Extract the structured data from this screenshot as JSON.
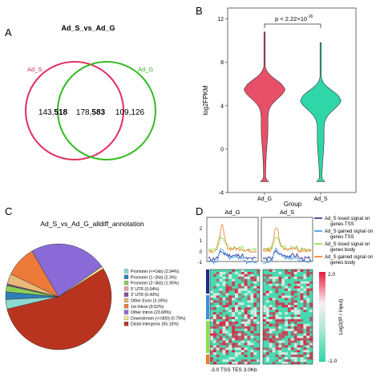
{
  "panels": {
    "A": {
      "letter": "A",
      "title": "Ad_S_vs_Ad_G",
      "set_left_label": "Ad_S",
      "set_right_label": "Ad_G",
      "left_only_prefix": "143,",
      "left_only_suffix": "518",
      "overlap_prefix": "178,",
      "overlap_suffix": "583",
      "right_only": "109,126",
      "left_color": "#e03060",
      "right_color": "#33bb22"
    },
    "B": {
      "letter": "B",
      "pvalue_text": "p < 2.22×10",
      "pvalue_exp": "-16",
      "ylabel": "log2FPKM",
      "xlabel": "Group",
      "colors": {
        "Ad_G": "#e8506a",
        "Ad_S": "#2fd6a8"
      }
    },
    "C": {
      "letter": "C",
      "title": "Ad_S_vs_Ad_G_alldiff_annotation"
    },
    "D": {
      "letter": "D",
      "profile_titles": [
        "Ad_G",
        "Ad_S"
      ],
      "x_axis_text": "-3.0  TSS    TES  3.0Kb",
      "colorbar_label": "Log2(IP / Input)",
      "colorbar_ticks": [
        "2.0",
        "-1.0"
      ],
      "legend": [
        {
          "label": "Ad_S losed signal on genes TSS",
          "color": "#1a2d8f"
        },
        {
          "label": "Ad_S gained signal on genes TSS",
          "color": "#3a8fe0"
        },
        {
          "label": "Ad_S losed signal on genes body",
          "color": "#88e04a"
        },
        {
          "label": "Ad_S gained signal on genes body",
          "color": "#f07a28"
        }
      ]
    }
  },
  "chart_data": [
    {
      "type": "violin",
      "title": "",
      "xlabel": "Group",
      "ylabel": "log2FPKM",
      "categories": [
        "Ad_G",
        "Ad_S"
      ],
      "ylim": [
        -4,
        13
      ],
      "yticks": [
        -4,
        0,
        4,
        8,
        12
      ],
      "series": [
        {
          "name": "Ad_G",
          "center": 5.6,
          "min": -3.0,
          "max": 10.8
        },
        {
          "name": "Ad_S",
          "center": 4.6,
          "min": -3.0,
          "max": 9.8
        }
      ]
    },
    {
      "type": "pie",
      "title": "Ad_S_vs_Ad_G_alldiff_annotation",
      "slices": [
        {
          "label": "Promoter (<=1kb) (2.94%)",
          "value": 2.94,
          "color": "#8ed8d0"
        },
        {
          "label": "Promoter (1~2kb) (2.3%)",
          "value": 2.3,
          "color": "#2e7fb8"
        },
        {
          "label": "Promoter (2~3kb) (1.95%)",
          "value": 1.95,
          "color": "#8ccf58"
        },
        {
          "label": "5' UTR (0.04%)",
          "value": 0.04,
          "color": "#f0a0b0"
        },
        {
          "label": "3' UTR (0.43%)",
          "value": 0.43,
          "color": "#8a4e9c"
        },
        {
          "label": "Other Exon (3.19%)",
          "value": 3.19,
          "color": "#e8b77a"
        },
        {
          "label": "1st Intron (9.52%)",
          "value": 9.52,
          "color": "#ee7a3a"
        },
        {
          "label": "Other Intron (23.68%)",
          "value": 23.68,
          "color": "#8a6ad6"
        },
        {
          "label": "Downstream (<=300) (0.79%)",
          "value": 0.79,
          "color": "#f4e890"
        },
        {
          "label": "Distal Intergenic (55.16%)",
          "value": 55.16,
          "color": "#b9341f"
        }
      ]
    }
  ]
}
